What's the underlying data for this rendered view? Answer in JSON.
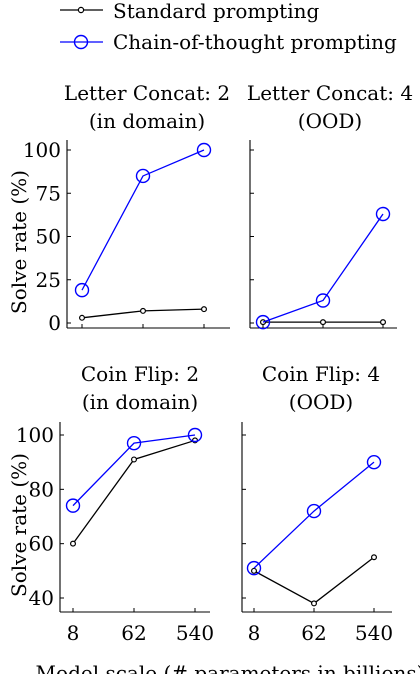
{
  "legend": {
    "standard_label": "Standard prompting",
    "cot_label": "Chain-of-thought prompting",
    "standard_color": "#000000",
    "cot_color": "#0000ff"
  },
  "shared_xlabel": "Model scale (# parameters in billions)",
  "shared_ylabel": "Solve rate (%)",
  "chart_data": [
    {
      "type": "line",
      "title_line1": "Letter Concat: 2",
      "title_line2": "(in domain)",
      "ylabel": "Solve rate (%)",
      "ylim": [
        0,
        100
      ],
      "yticks": [
        0,
        25,
        50,
        75,
        100
      ],
      "ytick_labels": [
        "0",
        "25",
        "50",
        "75",
        "100"
      ],
      "x": [
        8,
        62,
        540
      ],
      "show_xticks": false,
      "show_yticks": true,
      "series": [
        {
          "name": "Standard prompting",
          "color": "#000000",
          "marker": "dot",
          "values": [
            3,
            7,
            8
          ]
        },
        {
          "name": "Chain-of-thought prompting",
          "color": "#0000ff",
          "marker": "circle",
          "values": [
            19,
            85,
            100
          ]
        }
      ]
    },
    {
      "type": "line",
      "title_line1": "Letter Concat: 4",
      "title_line2": "(OOD)",
      "ylim": [
        0,
        100
      ],
      "yticks": [
        0,
        25,
        50,
        75,
        100
      ],
      "x": [
        8,
        62,
        540
      ],
      "show_xticks": false,
      "show_yticks": false,
      "series": [
        {
          "name": "Standard prompting",
          "color": "#000000",
          "marker": "dot",
          "values": [
            0.5,
            0.5,
            0.5
          ]
        },
        {
          "name": "Chain-of-thought prompting",
          "color": "#0000ff",
          "marker": "circle",
          "values": [
            0.5,
            13,
            63
          ]
        }
      ]
    },
    {
      "type": "line",
      "title_line1": "Coin Flip: 2",
      "title_line2": "(in domain)",
      "ylabel": "Solve rate (%)",
      "ylim": [
        38,
        100
      ],
      "yticks": [
        40,
        60,
        80,
        100
      ],
      "ytick_labels": [
        "40",
        "60",
        "80",
        "100"
      ],
      "x": [
        8,
        62,
        540
      ],
      "xtick_labels": [
        "8",
        "62",
        "540"
      ],
      "show_xticks": true,
      "show_yticks": true,
      "series": [
        {
          "name": "Standard prompting",
          "color": "#000000",
          "marker": "dot",
          "values": [
            60,
            91,
            98
          ]
        },
        {
          "name": "Chain-of-thought prompting",
          "color": "#0000ff",
          "marker": "circle",
          "values": [
            74,
            97,
            100
          ]
        }
      ]
    },
    {
      "type": "line",
      "title_line1": "Coin Flip: 4",
      "title_line2": "(OOD)",
      "ylim": [
        38,
        100
      ],
      "yticks": [
        40,
        60,
        80,
        100
      ],
      "x": [
        8,
        62,
        540
      ],
      "xtick_labels": [
        "8",
        "62",
        "540"
      ],
      "show_xticks": true,
      "show_yticks": false,
      "series": [
        {
          "name": "Standard prompting",
          "color": "#000000",
          "marker": "dot",
          "values": [
            50,
            38,
            55
          ]
        },
        {
          "name": "Chain-of-thought prompting",
          "color": "#0000ff",
          "marker": "circle",
          "values": [
            51,
            72,
            90
          ]
        }
      ]
    }
  ]
}
